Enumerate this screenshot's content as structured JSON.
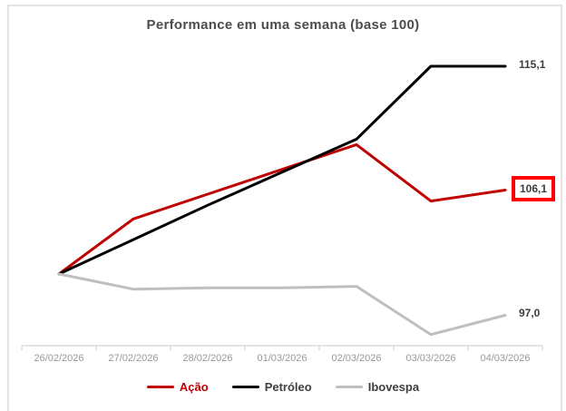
{
  "chart_data": {
    "type": "line",
    "title": "Performance em uma semana (base 100)",
    "categories": [
      "26/02/2026",
      "27/02/2026",
      "28/02/2026",
      "01/03/2026",
      "02/03/2026",
      "03/03/2026",
      "04/03/2026"
    ],
    "baseline": 100,
    "ylim": [
      95,
      116
    ],
    "grid": false,
    "legend_position": "bottom",
    "axis_color": "#dcdcdc",
    "annotation_box_color": "#ff0000",
    "series": [
      {
        "name": "Ação",
        "color": "#c00000",
        "label_color": "#c00000",
        "values": [
          100,
          104.0,
          105.8,
          107.6,
          109.4,
          105.3,
          106.1
        ],
        "end_label": "106,1",
        "end_label_boxed": true
      },
      {
        "name": "Petróleo",
        "color": "#000000",
        "label_color": "#3f3f3f",
        "values": [
          100,
          102.5,
          105.0,
          107.4,
          109.8,
          115.1,
          115.1
        ],
        "end_label": "115,1",
        "end_label_boxed": false
      },
      {
        "name": "Ibovespa",
        "color": "#bfbfbf",
        "label_color": "#3f3f3f",
        "values": [
          100,
          98.9,
          99.0,
          99.0,
          99.1,
          95.6,
          97.0
        ],
        "end_label": "97,0",
        "end_label_boxed": false
      }
    ]
  }
}
